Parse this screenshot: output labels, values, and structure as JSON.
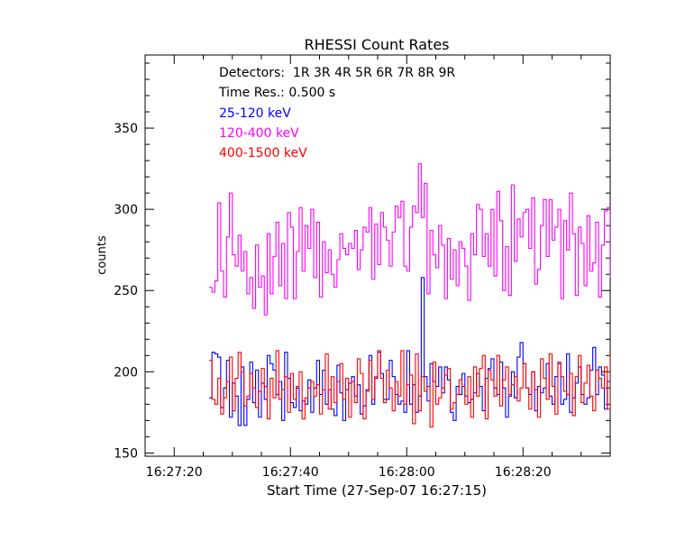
{
  "chart_data": {
    "type": "line",
    "title": "RHESSI Count Rates",
    "xlabel": "Start Time (27-Sep-07 16:27:15)",
    "ylabel": "counts",
    "detectors_label": "Detectors:  1R 3R 4R 5R 6R 7R 8R 9R",
    "time_res_label": "Time Res.: 0.500 s",
    "x_tick_labels": [
      "16:27:20",
      "16:27:40",
      "16:28:00",
      "16:28:20"
    ],
    "x_tick_values": [
      5,
      25,
      45,
      65
    ],
    "y_ticks": [
      150,
      200,
      250,
      300,
      350
    ],
    "xlim": [
      0,
      80
    ],
    "ylim": [
      148,
      395
    ],
    "t_start": 11.0,
    "t_step": 0.5,
    "series": [
      {
        "name": "25-120 keV",
        "color": "#0000ff",
        "values": [
          184,
          212,
          211,
          209,
          178,
          190,
          207,
          172,
          193,
          185,
          167,
          203,
          167,
          183,
          206,
          181,
          201,
          172,
          193,
          183,
          210,
          205,
          201,
          186,
          194,
          170,
          212,
          196,
          181,
          178,
          190,
          176,
          182,
          180,
          195,
          175,
          190,
          207,
          186,
          201,
          180,
          189,
          177,
          173,
          204,
          187,
          170,
          189,
          193,
          197,
          185,
          192,
          174,
          179,
          189,
          210,
          180,
          196,
          212,
          199,
          183,
          183,
          207,
          197,
          186,
          180,
          182,
          175,
          213,
          180,
          192,
          175,
          185,
          258,
          197,
          182,
          205,
          194,
          191,
          203,
          187,
          203,
          195,
          175,
          170,
          191,
          186,
          199,
          185,
          181,
          183,
          187,
          199,
          191,
          176,
          196,
          202,
          208,
          190,
          186,
          206,
          190,
          172,
          185,
          200,
          184,
          209,
          218,
          205,
          190,
          186,
          200,
          176,
          191,
          187,
          190,
          205,
          185,
          180,
          197,
          205,
          180,
          183,
          211,
          175,
          184,
          193,
          203,
          186,
          180,
          184,
          201,
          215,
          186,
          203,
          198,
          177,
          194,
          200,
          174,
          193,
          181,
          185,
          175,
          198,
          188,
          193,
          183,
          180,
          195,
          197,
          189,
          184,
          196,
          188,
          194,
          170,
          193,
          183,
          197,
          204
        ]
      },
      {
        "name": "120-400 keV",
        "color": "#ff00ff",
        "values": [
          252,
          249,
          256,
          304,
          262,
          246,
          283,
          310,
          272,
          265,
          284,
          262,
          274,
          248,
          258,
          239,
          278,
          252,
          259,
          235,
          285,
          248,
          271,
          292,
          253,
          279,
          245,
          298,
          289,
          245,
          274,
          301,
          262,
          290,
          276,
          300,
          258,
          292,
          246,
          280,
          261,
          275,
          260,
          252,
          269,
          285,
          276,
          272,
          279,
          276,
          287,
          263,
          275,
          289,
          286,
          301,
          257,
          291,
          266,
          298,
          289,
          281,
          265,
          286,
          302,
          295,
          305,
          265,
          262,
          289,
          302,
          298,
          328,
          295,
          316,
          248,
          287,
          272,
          264,
          290,
          278,
          245,
          282,
          257,
          275,
          253,
          280,
          276,
          265,
          244,
          285,
          272,
          303,
          300,
          271,
          285,
          265,
          300,
          259,
          311,
          293,
          250,
          277,
          247,
          315,
          268,
          294,
          283,
          298,
          300,
          276,
          307,
          254,
          263,
          290,
          306,
          271,
          306,
          281,
          289,
          300,
          245,
          293,
          275,
          310,
          285,
          247,
          289,
          279,
          253,
          296,
          262,
          267,
          292,
          246,
          278,
          299,
          301,
          258,
          305,
          242,
          269,
          278,
          281,
          283,
          260,
          289,
          246,
          276,
          283,
          256,
          307,
          238,
          255,
          244,
          284,
          290,
          276,
          300,
          275,
          290,
          271,
          302
        ]
      },
      {
        "name": "400-1500 keV",
        "color": "#ff0000",
        "values": [
          207,
          183,
          180,
          196,
          174,
          184,
          194,
          209,
          176,
          196,
          212,
          200,
          179,
          185,
          199,
          190,
          178,
          188,
          202,
          191,
          171,
          196,
          184,
          213,
          183,
          189,
          197,
          175,
          199,
          183,
          191,
          200,
          171,
          184,
          190,
          194,
          185,
          192,
          174,
          189,
          211,
          177,
          197,
          181,
          194,
          205,
          183,
          196,
          172,
          194,
          181,
          208,
          199,
          171,
          188,
          207,
          183,
          197,
          213,
          196,
          181,
          201,
          190,
          176,
          194,
          185,
          213,
          180,
          192,
          198,
          168,
          211,
          176,
          197,
          188,
          191,
          166,
          206,
          180,
          184,
          190,
          198,
          202,
          177,
          181,
          186,
          195,
          191,
          180,
          197,
          172,
          203,
          185,
          202,
          210,
          171,
          201,
          195,
          185,
          210,
          179,
          195,
          203,
          186,
          192,
          197,
          182,
          190,
          205,
          190,
          177,
          200,
          189,
          172,
          208,
          196,
          183,
          211,
          191,
          174,
          206,
          197,
          188,
          186,
          199,
          173,
          197,
          210,
          181,
          193,
          204,
          185,
          176,
          201,
          196,
          190,
          203,
          177,
          210,
          182,
          187,
          197,
          172,
          204,
          181,
          194,
          186,
          201,
          176,
          196,
          188,
          184,
          202,
          193,
          169,
          194,
          201,
          188,
          196,
          174,
          193,
          205,
          185,
          176,
          199,
          196,
          185,
          170,
          193,
          203,
          183,
          198,
          166
        ]
      }
    ]
  }
}
